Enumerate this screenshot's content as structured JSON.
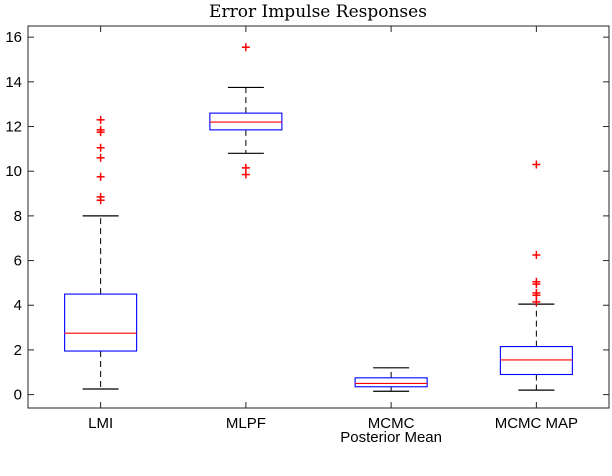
{
  "chart_data": {
    "type": "box",
    "title": "Error Impulse Responses",
    "xlabel": "",
    "ylabel": "",
    "ylim": [
      -0.6,
      16.5
    ],
    "yticks": [
      0,
      2,
      4,
      6,
      8,
      10,
      12,
      14,
      16
    ],
    "grid": false,
    "categories": [
      {
        "label": "LMI",
        "label2": ""
      },
      {
        "label": "MLPF",
        "label2": ""
      },
      {
        "label": "MCMC",
        "label2": "Posterior Mean"
      },
      {
        "label": "MCMC MAP",
        "label2": ""
      }
    ],
    "boxes": [
      {
        "category": "LMI",
        "whisker_low": 0.25,
        "q1": 1.95,
        "median": 2.75,
        "q3": 4.5,
        "whisker_high": 8.0,
        "outliers": [
          8.7,
          8.85,
          9.75,
          10.6,
          11.05,
          11.75,
          11.85,
          12.3
        ]
      },
      {
        "category": "MLPF",
        "whisker_low": 10.8,
        "q1": 11.85,
        "median": 12.2,
        "q3": 12.6,
        "whisker_high": 13.75,
        "outliers": [
          9.85,
          10.15,
          15.55
        ]
      },
      {
        "category": "MCMC Posterior Mean",
        "whisker_low": 0.15,
        "q1": 0.35,
        "median": 0.5,
        "q3": 0.75,
        "whisker_high": 1.2,
        "outliers": []
      },
      {
        "category": "MCMC MAP",
        "whisker_low": 0.2,
        "q1": 0.9,
        "median": 1.55,
        "q3": 2.15,
        "whisker_high": 4.05,
        "outliers": [
          4.15,
          4.45,
          4.55,
          4.95,
          5.05,
          6.25,
          10.3
        ]
      }
    ],
    "colors": {
      "box": "#0000ff",
      "median": "#ff0000",
      "outlier": "#ff0000",
      "whisker": "#000000"
    }
  }
}
